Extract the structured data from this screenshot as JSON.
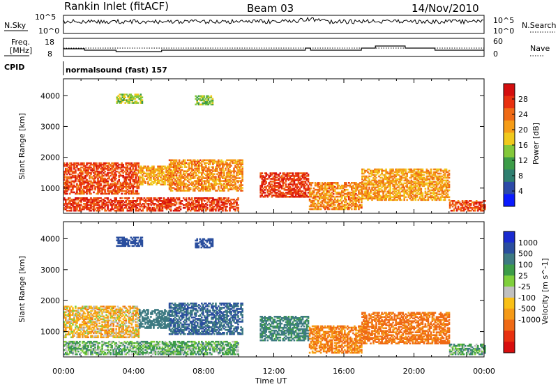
{
  "header": {
    "site": "Rankin Inlet (fitACF)",
    "beam": "Beam 03",
    "date": "14/Nov/2010"
  },
  "top_panels": {
    "nsky_label": "N.Sky",
    "nsky_ticks": [
      "10^5",
      "10^0"
    ],
    "nsearch_label": "N.Search",
    "nsearch_ticks": [
      "10^5",
      "10^0"
    ],
    "freq_label_1": "Freq.",
    "freq_label_2": "[MHz]",
    "freq_ticks": [
      "18",
      "8"
    ],
    "nave_label": "Nave",
    "nave_ticks": [
      "60",
      "0"
    ],
    "cpid_label": "CPID",
    "cpid_text": "normalsound (fast) 157"
  },
  "chart_data": [
    {
      "type": "heatmap",
      "title": "",
      "xlabel": "Time UT",
      "ylabel": "Slant Range [km]",
      "x_ticks": [
        "00:00",
        "04:00",
        "08:00",
        "12:00",
        "16:00",
        "20:00",
        "00:00"
      ],
      "y_ticks": [
        1000,
        2000,
        3000,
        4000
      ],
      "ylim": [
        180,
        4550
      ],
      "xlim_hours": [
        0,
        24
      ],
      "colorbar": {
        "label": "Power [dB]",
        "ticks": [
          "4",
          "8",
          "12",
          "16",
          "20",
          "24",
          "28"
        ],
        "range": [
          0,
          32
        ],
        "colors": [
          "#0a1aff",
          "#2c4aa8",
          "#2f7f70",
          "#3c9c48",
          "#83c83a",
          "#f0c91c",
          "#f59c17",
          "#ef6a15",
          "#e8300f",
          "#d40e0e"
        ]
      },
      "bands": [
        {
          "t_start": 0.0,
          "t_end": 4.3,
          "range_lo": 800,
          "range_hi": 1800,
          "value": 26
        },
        {
          "t_start": 4.3,
          "t_end": 6.0,
          "range_lo": 1100,
          "range_hi": 1700,
          "value": 20
        },
        {
          "t_start": 6.0,
          "t_end": 10.2,
          "range_lo": 900,
          "range_hi": 1900,
          "value": 22
        },
        {
          "t_start": 0.0,
          "t_end": 10.0,
          "range_lo": 250,
          "range_hi": 700,
          "value": 27
        },
        {
          "t_start": 11.2,
          "t_end": 14.0,
          "range_lo": 700,
          "range_hi": 1500,
          "value": 27
        },
        {
          "t_start": 14.0,
          "t_end": 17.0,
          "range_lo": 300,
          "range_hi": 1200,
          "value": 22
        },
        {
          "t_start": 17.0,
          "t_end": 22.0,
          "range_lo": 600,
          "range_hi": 1600,
          "value": 21
        },
        {
          "t_start": 22.0,
          "t_end": 24.0,
          "range_lo": 250,
          "range_hi": 600,
          "value": 26
        },
        {
          "t_start": 3.0,
          "t_end": 4.5,
          "range_lo": 3750,
          "range_hi": 4050,
          "value": 15
        },
        {
          "t_start": 7.5,
          "t_end": 8.5,
          "range_lo": 3700,
          "range_hi": 4000,
          "value": 14
        }
      ]
    },
    {
      "type": "heatmap",
      "title": "",
      "xlabel": "Time UT",
      "ylabel": "Slant Range [km]",
      "x_ticks": [
        "00:00",
        "04:00",
        "08:00",
        "12:00",
        "16:00",
        "20:00",
        "00:00"
      ],
      "y_ticks": [
        1000,
        2000,
        3000,
        4000
      ],
      "ylim": [
        180,
        4550
      ],
      "xlim_hours": [
        0,
        24
      ],
      "colorbar": {
        "label": "Velocity [m s^-1]",
        "ticks": [
          "1000",
          "500",
          "100",
          "25",
          "-25",
          "-100",
          "-500",
          "-1000"
        ],
        "colors": [
          "#1a2bd0",
          "#2a4e9e",
          "#3d7a82",
          "#3c9c48",
          "#7fcf3c",
          "#c0c0c0",
          "#f9c017",
          "#f59a17",
          "#ef6a15",
          "#e8300f",
          "#d80e0e"
        ]
      },
      "bands": [
        {
          "t_start": 0.0,
          "t_end": 4.3,
          "range_lo": 800,
          "range_hi": 1800,
          "value": -60
        },
        {
          "t_start": 4.3,
          "t_end": 6.0,
          "range_lo": 1100,
          "range_hi": 1700,
          "value": 300
        },
        {
          "t_start": 6.0,
          "t_end": 10.2,
          "range_lo": 900,
          "range_hi": 1900,
          "value": 400
        },
        {
          "t_start": 0.0,
          "t_end": 10.0,
          "range_lo": 250,
          "range_hi": 700,
          "value": 80
        },
        {
          "t_start": 11.2,
          "t_end": 14.0,
          "range_lo": 700,
          "range_hi": 1500,
          "value": 200
        },
        {
          "t_start": 14.0,
          "t_end": 17.0,
          "range_lo": 300,
          "range_hi": 1200,
          "value": -150
        },
        {
          "t_start": 17.0,
          "t_end": 22.0,
          "range_lo": 600,
          "range_hi": 1600,
          "value": -200
        },
        {
          "t_start": 22.0,
          "t_end": 24.0,
          "range_lo": 250,
          "range_hi": 600,
          "value": 90
        },
        {
          "t_start": 3.0,
          "t_end": 4.5,
          "range_lo": 3750,
          "range_hi": 4050,
          "value": 600
        },
        {
          "t_start": 7.5,
          "t_end": 8.5,
          "range_lo": 3700,
          "range_hi": 4000,
          "value": 500
        }
      ]
    }
  ]
}
